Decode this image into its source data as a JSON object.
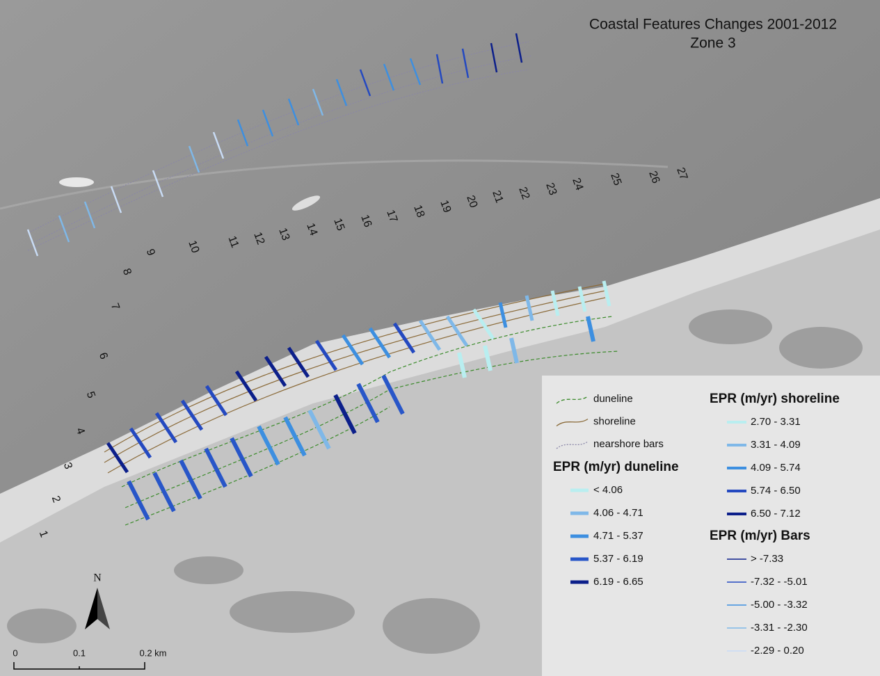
{
  "title": [
    "Coastal Features Changes 2001-2012",
    "Zone 3"
  ],
  "transect_labels": [
    "1",
    "2",
    "3",
    "4",
    "5",
    "6",
    "7",
    "8",
    "9",
    "10",
    "11",
    "12",
    "13",
    "14",
    "15",
    "16",
    "17",
    "18",
    "19",
    "20",
    "21",
    "22",
    "23",
    "24",
    "25",
    "26",
    "27"
  ],
  "legend": {
    "features": [
      {
        "label": "duneline",
        "color": "#3a8a2a"
      },
      {
        "label": "shoreline",
        "color": "#8b6b3a"
      },
      {
        "label": "nearshore bars",
        "color": "#8a86a8"
      }
    ],
    "duneline": {
      "title": "EPR (m/yr) duneline",
      "classes": [
        {
          "label": "< 4.06",
          "color": "#b9eef0"
        },
        {
          "label": "4.06 - 4.71",
          "color": "#7fb8e8"
        },
        {
          "label": "4.71 - 5.37",
          "color": "#3d8fe0"
        },
        {
          "label": "5.37 - 6.19",
          "color": "#2856c8"
        },
        {
          "label": "6.19 - 6.65",
          "color": "#0c1f8a"
        }
      ]
    },
    "shoreline": {
      "title": "EPR (m/yr) shoreline",
      "classes": [
        {
          "label": "2.70 - 3.31",
          "color": "#b9eef0"
        },
        {
          "label": "3.31 - 4.09",
          "color": "#7fb8e8"
        },
        {
          "label": "4.09 - 5.74",
          "color": "#3d8fe0"
        },
        {
          "label": "5.74 - 6.50",
          "color": "#2449c0"
        },
        {
          "label": "6.50 - 7.12",
          "color": "#0c1f8a"
        }
      ]
    },
    "bars": {
      "title": "EPR (m/yr) Bars",
      "classes": [
        {
          "label": "> -7.33",
          "color": "#0c1f8a"
        },
        {
          "label": "-7.32 - -5.01",
          "color": "#2449c0"
        },
        {
          "label": "-5.00 - -3.32",
          "color": "#3d8fe0"
        },
        {
          "label": "-3.31 - -2.30",
          "color": "#7fb8e8"
        },
        {
          "label": "-2.29 - 0.20",
          "color": "#c9dcf5"
        }
      ]
    }
  },
  "north": "N",
  "scale_bar": [
    "0",
    "0.1",
    "0.2 km"
  ]
}
